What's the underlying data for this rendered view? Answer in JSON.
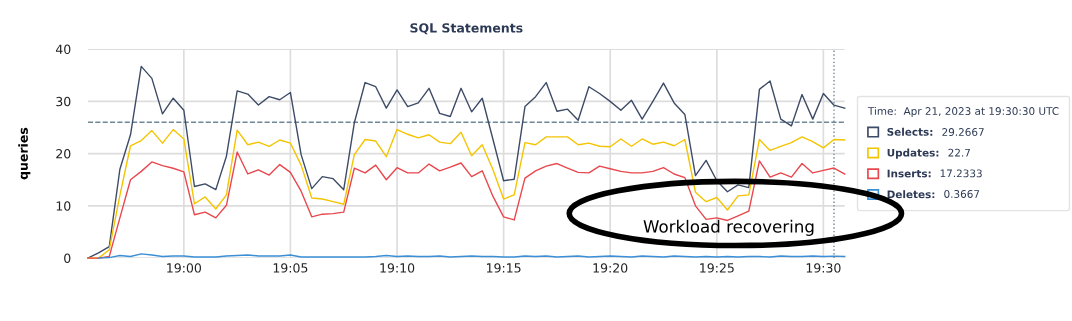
{
  "chart_data": {
    "type": "line",
    "title": "SQL Statements",
    "ylabel": "queries",
    "x": [
      18.925,
      18.9333,
      18.9417,
      18.95,
      18.9583,
      18.9667,
      18.975,
      18.9833,
      18.9917,
      19.0,
      19.0083,
      19.0167,
      19.025,
      19.0333,
      19.0417,
      19.05,
      19.0583,
      19.0667,
      19.075,
      19.0833,
      19.0917,
      19.1,
      19.1083,
      19.1167,
      19.125,
      19.1333,
      19.1417,
      19.15,
      19.1583,
      19.1667,
      19.175,
      19.1833,
      19.1917,
      19.2,
      19.2083,
      19.2167,
      19.225,
      19.2333,
      19.2417,
      19.25,
      19.2583,
      19.2667,
      19.275,
      19.2833,
      19.2917,
      19.3,
      19.3083,
      19.3167,
      19.325,
      19.3333,
      19.3417,
      19.35,
      19.3583,
      19.3667,
      19.375,
      19.3833,
      19.3917,
      19.4,
      19.4083,
      19.4167,
      19.425,
      19.4333,
      19.4417,
      19.45,
      19.4583,
      19.4667,
      19.475,
      19.4833,
      19.4917,
      19.5,
      19.5083,
      19.5167
    ],
    "series": [
      {
        "name": "Selects:",
        "color": "#3d4b66",
        "values": [
          0,
          1,
          2.2,
          17,
          23.6,
          36.7,
          34.4,
          27.6,
          30.6,
          28.3,
          13.7,
          14.2,
          13.1,
          19.5,
          32,
          31.4,
          29.3,
          30.9,
          30.3,
          31.7,
          19.8,
          13.3,
          15.6,
          15.2,
          13.1,
          25.9,
          33.6,
          32.8,
          28.7,
          32.2,
          29,
          29.7,
          32.5,
          27.7,
          27.1,
          32.5,
          28,
          30.6,
          22.7,
          14.8,
          15.1,
          29,
          30.9,
          33.6,
          28.1,
          28.5,
          26.4,
          32.8,
          31.5,
          30,
          28.3,
          30.2,
          26.6,
          30,
          33.5,
          29.7,
          27.5,
          15.8,
          18.7,
          14.8,
          12.7,
          14,
          13.5,
          32.3,
          33.9,
          26.6,
          25.3,
          31.3,
          26.6,
          31.5,
          29.2667,
          28.7
        ]
      },
      {
        "name": "Updates:",
        "color": "#f5c400",
        "values": [
          0,
          0,
          1.6,
          12,
          21.5,
          22.5,
          24.4,
          22,
          24.6,
          22.8,
          10.4,
          11.7,
          9.4,
          12.1,
          24.5,
          21.7,
          22.2,
          21.4,
          22.6,
          22,
          17.8,
          11.5,
          11.3,
          10.8,
          10.3,
          19.8,
          22.7,
          22.4,
          19.4,
          24.6,
          23.7,
          23,
          23.6,
          22.2,
          21.9,
          24.1,
          19.6,
          21.7,
          16.9,
          11.3,
          12.1,
          22.1,
          21.7,
          23.2,
          23.2,
          23.2,
          21.7,
          22,
          21.4,
          21.3,
          22.8,
          21.4,
          22.8,
          21.8,
          22.2,
          21.5,
          22.7,
          12.6,
          10.8,
          11.6,
          9.2,
          11.9,
          12.1,
          22.7,
          20.6,
          21.4,
          22.1,
          23.2,
          22.3,
          21.1,
          22.7,
          22.6
        ]
      },
      {
        "name": "Inserts:",
        "color": "#e8484d",
        "values": [
          0,
          0,
          0.3,
          7.7,
          15,
          16.6,
          18.4,
          17.7,
          17.2,
          16.5,
          8.3,
          8.8,
          7.7,
          10.1,
          20.3,
          16.1,
          16.9,
          15.9,
          17.9,
          16.4,
          12.8,
          7.9,
          8.4,
          8.5,
          8.8,
          17.2,
          16.3,
          17.8,
          15,
          17.3,
          16.3,
          16.3,
          18,
          16.7,
          17.4,
          18.2,
          15.6,
          16.7,
          11.8,
          7.9,
          7.3,
          15.3,
          16.7,
          17.6,
          18.1,
          17.2,
          16.4,
          16.3,
          17.6,
          17.1,
          16.6,
          16.3,
          16.3,
          16.6,
          17.3,
          16.1,
          15.4,
          10,
          7.4,
          7.7,
          7.2,
          8.1,
          9,
          18.6,
          15.5,
          16.3,
          15.5,
          18.1,
          16.3,
          16.8,
          17.2333,
          16.1
        ]
      },
      {
        "name": "Deletes:",
        "color": "#3a8fd6",
        "values": [
          null,
          0,
          0.1,
          0.5,
          0.3,
          0.8,
          0.6,
          0.3,
          0.4,
          0.4,
          0.2,
          0.2,
          0.2,
          0.4,
          0.5,
          0.6,
          0.4,
          0.4,
          0.4,
          0.6,
          0.2,
          0.2,
          0.2,
          0.2,
          0.2,
          0.2,
          0.2,
          0.3,
          0.5,
          0.3,
          0.4,
          0.3,
          0.3,
          0.4,
          0.2,
          0.3,
          0.4,
          0.3,
          0.3,
          0.2,
          0.2,
          0.4,
          0.3,
          0.4,
          0.2,
          0.3,
          0.4,
          0.2,
          0.3,
          0.4,
          0.3,
          0.2,
          0.4,
          0.3,
          0.2,
          0.4,
          0.3,
          0.2,
          0.3,
          0.2,
          0.3,
          0.2,
          0.3,
          0.3,
          0.2,
          0.4,
          0.3,
          0.3,
          0.4,
          0.3,
          0.3667,
          0.3
        ]
      }
    ],
    "xlim": [
      18.925,
      19.5167
    ],
    "xticks": [
      {
        "value": 19.0,
        "label": "19:00"
      },
      {
        "value": 19.0833,
        "label": "19:05"
      },
      {
        "value": 19.1667,
        "label": "19:10"
      },
      {
        "value": 19.25,
        "label": "19:15"
      },
      {
        "value": 19.3333,
        "label": "19:20"
      },
      {
        "value": 19.4167,
        "label": "19:25"
      },
      {
        "value": 19.5,
        "label": "19:30"
      }
    ],
    "ylim": [
      0,
      40
    ],
    "yticks": [
      0,
      10,
      20,
      30,
      40
    ],
    "ref_lines": [
      {
        "axis": "y",
        "value": 26,
        "color": "#6f8797",
        "line_style": "dashed"
      },
      {
        "axis": "x",
        "value": 19.5083,
        "color": "#6f8797",
        "line_style": "dotted"
      }
    ],
    "legend_title": "Time:  Apr 21, 2023 at 19:30:30 UTC",
    "annotations": [
      "Workload recovering",
      "29.2667",
      "22.7",
      "17.2333",
      "0.3667"
    ],
    "grid": true,
    "legend": "right",
    "line_style": "solid",
    "marker": "none"
  }
}
